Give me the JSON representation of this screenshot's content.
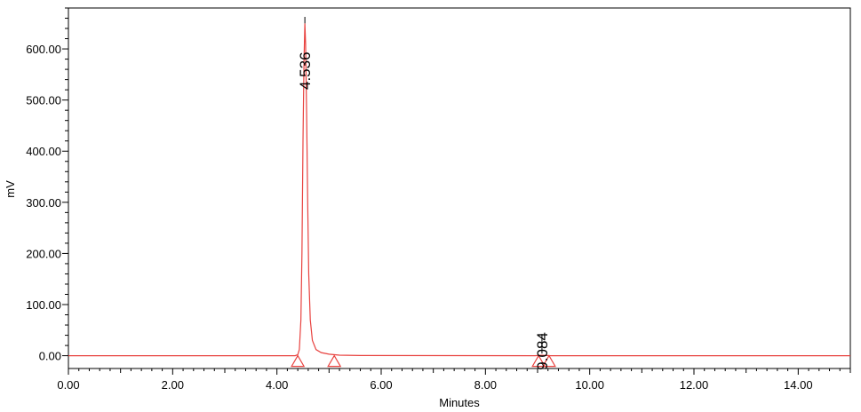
{
  "chart_data": {
    "type": "line",
    "title": "",
    "xlabel": "Minutes",
    "ylabel": "mV",
    "xlim": [
      0,
      15
    ],
    "ylim": [
      -25,
      680
    ],
    "x_ticks": [
      0,
      2,
      4,
      6,
      8,
      10,
      12,
      14
    ],
    "x_tick_labels": [
      "0.00",
      "2.00",
      "4.00",
      "6.00",
      "8.00",
      "10.00",
      "12.00",
      "14.00"
    ],
    "y_ticks": [
      0,
      100,
      200,
      300,
      400,
      500,
      600
    ],
    "y_tick_labels": [
      "0.00",
      "100.00",
      "200.00",
      "300.00",
      "400.00",
      "500.00",
      "600.00"
    ],
    "grid": false,
    "series": [
      {
        "color": "#e8423f",
        "baseline": 0,
        "x": [
          0.0,
          4.35,
          4.4,
          4.43,
          4.46,
          4.48,
          4.5,
          4.52,
          4.536,
          4.55,
          4.57,
          4.59,
          4.61,
          4.64,
          4.68,
          4.75,
          4.85,
          5.0,
          5.2,
          5.6,
          8.95,
          9.084,
          9.25,
          15.0
        ],
        "y": [
          0,
          0,
          2,
          12,
          70,
          200,
          420,
          580,
          650,
          610,
          470,
          300,
          160,
          70,
          30,
          12,
          6,
          3,
          1,
          0.4,
          0,
          0.8,
          0,
          0
        ]
      }
    ],
    "peaks": [
      {
        "retention_time": 4.536,
        "label": "4.536",
        "apex_mV": 650
      },
      {
        "retention_time": 9.084,
        "label": "9.084",
        "apex_mV": 0.8
      }
    ],
    "integration_markers": [
      4.4,
      5.1,
      9.02,
      9.22
    ]
  }
}
